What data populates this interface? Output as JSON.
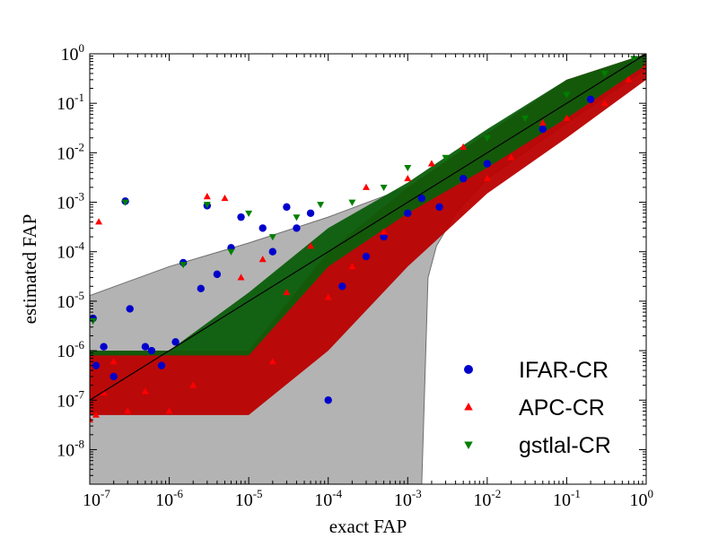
{
  "chart_data": {
    "type": "scatter",
    "title": "",
    "xlabel": "exact FAP",
    "ylabel": "estimated FAP",
    "xscale": "log",
    "yscale": "log",
    "xlim": [
      1e-07,
      1
    ],
    "ylim": [
      2e-09,
      1
    ],
    "grid": false,
    "legend_placement": "lower-right",
    "x_ticks": [
      {
        "value": 1e-07,
        "base": "10",
        "exp": "-7"
      },
      {
        "value": 1e-06,
        "base": "10",
        "exp": "-6"
      },
      {
        "value": 1e-05,
        "base": "10",
        "exp": "-5"
      },
      {
        "value": 0.0001,
        "base": "10",
        "exp": "-4"
      },
      {
        "value": 0.001,
        "base": "10",
        "exp": "-3"
      },
      {
        "value": 0.01,
        "base": "10",
        "exp": "-2"
      },
      {
        "value": 0.1,
        "base": "10",
        "exp": "-1"
      },
      {
        "value": 1,
        "base": "10",
        "exp": "0"
      }
    ],
    "y_ticks": [
      {
        "value": 1e-08,
        "base": "10",
        "exp": "-8"
      },
      {
        "value": 1e-07,
        "base": "10",
        "exp": "-7"
      },
      {
        "value": 1e-06,
        "base": "10",
        "exp": "-6"
      },
      {
        "value": 1e-05,
        "base": "10",
        "exp": "-5"
      },
      {
        "value": 0.0001,
        "base": "10",
        "exp": "-4"
      },
      {
        "value": 0.001,
        "base": "10",
        "exp": "-3"
      },
      {
        "value": 0.01,
        "base": "10",
        "exp": "-2"
      },
      {
        "value": 0.1,
        "base": "10",
        "exp": "-1"
      },
      {
        "value": 1,
        "base": "10",
        "exp": "0"
      }
    ],
    "reference_line": {
      "x": [
        1e-07,
        1
      ],
      "y": [
        1e-07,
        1
      ],
      "color": "#000000"
    },
    "shaded_region": {
      "color": "#b3b3b3",
      "upper": {
        "x": [
          1e-07,
          1e-06,
          1e-05,
          0.0001,
          0.001,
          0.01,
          0.1,
          1
        ],
        "y": [
          1.3e-05,
          5e-05,
          0.00015,
          0.0005,
          0.002,
          0.012,
          0.15,
          1
        ]
      },
      "lower": {
        "x": [
          1e-07,
          0.0015,
          0.0018,
          0.0023,
          0.004,
          0.01,
          0.1,
          1
        ],
        "y": [
          2e-09,
          2e-09,
          3e-05,
          0.00013,
          0.0006,
          0.003,
          0.04,
          0.5
        ]
      }
    },
    "series": [
      {
        "name": "IFAR-CR",
        "marker": "circle",
        "color": "#0000cc",
        "points": [
          [
            1.1e-07,
            4.5e-06
          ],
          [
            1.2e-07,
            5e-07
          ],
          [
            1.5e-07,
            1.2e-06
          ],
          [
            2e-07,
            3e-07
          ],
          [
            2.8e-07,
            0.00105
          ],
          [
            3.2e-07,
            7e-06
          ],
          [
            5e-07,
            1.2e-06
          ],
          [
            6e-07,
            1e-06
          ],
          [
            8e-07,
            5e-07
          ],
          [
            1.2e-06,
            1.5e-06
          ],
          [
            1.5e-06,
            6e-05
          ],
          [
            2.5e-06,
            1.8e-05
          ],
          [
            3e-06,
            0.00085
          ],
          [
            4e-06,
            3.5e-05
          ],
          [
            6e-06,
            0.00012
          ],
          [
            8e-06,
            0.0005
          ],
          [
            1.5e-05,
            0.0003
          ],
          [
            2e-05,
            0.0001
          ],
          [
            3e-05,
            0.0008
          ],
          [
            4e-05,
            0.0003
          ],
          [
            6e-05,
            0.0006
          ],
          [
            0.0001,
            1e-07
          ],
          [
            0.00015,
            2e-05
          ],
          [
            0.0003,
            8e-05
          ],
          [
            0.0005,
            0.0002
          ],
          [
            0.001,
            0.0006
          ],
          [
            0.0015,
            0.0012
          ],
          [
            0.0025,
            0.0008
          ],
          [
            0.005,
            0.003
          ],
          [
            0.01,
            0.006
          ],
          [
            0.05,
            0.03
          ],
          [
            0.2,
            0.12
          ]
        ]
      },
      {
        "name": "APC-CR",
        "marker": "triangle-up",
        "color": "#ff0000",
        "points": [
          [
            1e-07,
            4e-08
          ],
          [
            1.2e-07,
            5e-08
          ],
          [
            1.3e-07,
            0.0004
          ],
          [
            1.5e-07,
            1.4e-07
          ],
          [
            2e-07,
            6e-07
          ],
          [
            3e-07,
            6e-08
          ],
          [
            5e-07,
            1.5e-07
          ],
          [
            1e-06,
            6e-08
          ],
          [
            2e-06,
            2e-07
          ],
          [
            3e-06,
            0.0013
          ],
          [
            5e-06,
            0.0012
          ],
          [
            8e-06,
            3e-05
          ],
          [
            1.5e-05,
            7e-05
          ],
          [
            2e-05,
            6e-07
          ],
          [
            3e-05,
            1.5e-05
          ],
          [
            6e-05,
            0.00013
          ],
          [
            0.0001,
            1.2e-05
          ],
          [
            0.0002,
            5e-05
          ],
          [
            0.0003,
            0.002
          ],
          [
            0.0005,
            0.00025
          ],
          [
            0.001,
            0.003
          ],
          [
            0.002,
            0.006
          ],
          [
            0.005,
            0.013
          ],
          [
            0.01,
            0.003
          ],
          [
            0.02,
            0.008
          ],
          [
            0.05,
            0.04
          ],
          [
            0.1,
            0.05
          ],
          [
            0.3,
            0.1
          ],
          [
            0.6,
            0.3
          ],
          [
            1,
            0.6
          ]
        ]
      },
      {
        "name": "gstlal-CR",
        "marker": "triangle-down",
        "color": "#007f00",
        "points": [
          [
            1.1e-07,
            4e-06
          ],
          [
            2.8e-07,
            0.001
          ],
          [
            1.5e-06,
            5.5e-05
          ],
          [
            3e-06,
            0.0009
          ],
          [
            6e-06,
            0.0001
          ],
          [
            1e-05,
            0.0006
          ],
          [
            2e-05,
            0.0002
          ],
          [
            4e-05,
            0.0005
          ],
          [
            8e-05,
            0.0009
          ],
          [
            0.0002,
            0.001
          ],
          [
            0.0005,
            0.002
          ],
          [
            0.001,
            0.005
          ],
          [
            0.003,
            0.008
          ],
          [
            0.01,
            0.02
          ],
          [
            0.03,
            0.05
          ],
          [
            0.1,
            0.15
          ],
          [
            0.3,
            0.4
          ],
          [
            0.7,
            0.8
          ]
        ]
      }
    ],
    "bands": [
      {
        "series": "APC-CR",
        "x": [
          1e-07,
          1e-06,
          1e-05,
          0.0001,
          0.001,
          0.01,
          0.1,
          1
        ],
        "lo": [
          5e-08,
          5e-08,
          5e-08,
          1e-06,
          5e-05,
          0.0015,
          0.02,
          0.3
        ],
        "hi": [
          1e-06,
          1e-06,
          1e-06,
          0.0001,
          0.002,
          0.025,
          0.3,
          1
        ]
      },
      {
        "series": "gstlal-CR",
        "x": [
          1e-07,
          1e-06,
          1e-05,
          0.0001,
          0.001,
          0.01,
          0.1,
          1
        ],
        "lo": [
          8e-07,
          8e-07,
          8e-07,
          5e-05,
          0.0006,
          0.005,
          0.05,
          0.6
        ],
        "hi": [
          1e-06,
          1e-06,
          1.5e-05,
          0.0003,
          0.0025,
          0.03,
          0.3,
          1
        ]
      }
    ]
  }
}
